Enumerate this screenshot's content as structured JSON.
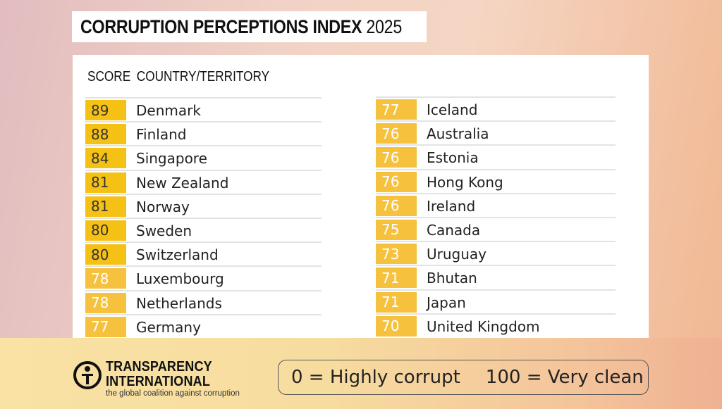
{
  "title": {
    "main": "CORRUPTION PERCEPTIONS INDEX",
    "year": "2025"
  },
  "table": {
    "header_score": "SCORE",
    "header_country": "COUNTRY/TERRITORY",
    "left": [
      {
        "score": "89",
        "country": "Denmark"
      },
      {
        "score": "88",
        "country": "Finland"
      },
      {
        "score": "84",
        "country": "Singapore"
      },
      {
        "score": "81",
        "country": "New Zealand"
      },
      {
        "score": "81",
        "country": "Norway"
      },
      {
        "score": "80",
        "country": "Sweden"
      },
      {
        "score": "80",
        "country": "Switzerland"
      },
      {
        "score": "78",
        "country": "Luxembourg"
      },
      {
        "score": "78",
        "country": "Netherlands"
      },
      {
        "score": "77",
        "country": "Germany"
      }
    ],
    "right": [
      {
        "score": "77",
        "country": "Iceland"
      },
      {
        "score": "76",
        "country": "Australia"
      },
      {
        "score": "76",
        "country": "Estonia"
      },
      {
        "score": "76",
        "country": "Hong Kong"
      },
      {
        "score": "76",
        "country": "Ireland"
      },
      {
        "score": "75",
        "country": "Canada"
      },
      {
        "score": "73",
        "country": "Uruguay"
      },
      {
        "score": "71",
        "country": "Bhutan"
      },
      {
        "score": "71",
        "country": "Japan"
      },
      {
        "score": "70",
        "country": "United Kingdom"
      }
    ]
  },
  "logo": {
    "line1": "TRANSPARENCY",
    "line2": "INTERNATIONAL",
    "tagline": "the global coalition against corruption"
  },
  "legend": {
    "low": "0 = Highly corrupt",
    "high": "100 = Very clean"
  },
  "colors": {
    "score_high": "#f6c115",
    "score_low": "#f6c23e"
  }
}
